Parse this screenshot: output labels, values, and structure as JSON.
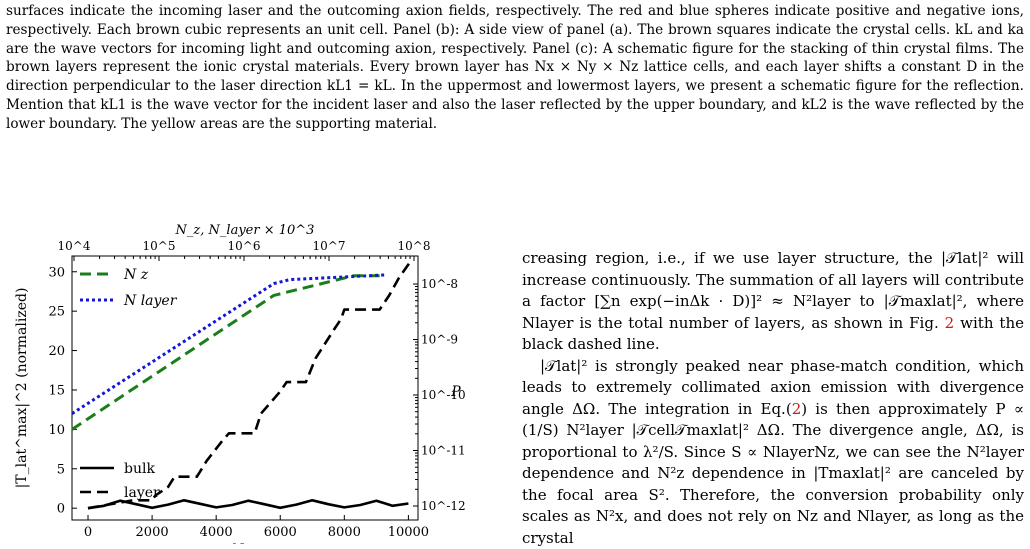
{
  "caption": {
    "paragraphs": [
      "surfaces indicate the incoming laser and the outcoming axion fields, respectively. The red and blue spheres indicate positive and negative ions, respectively. Each brown cubic represents an unit cell. Panel (b): A side view of panel (a). The brown squares indicate the crystal cells. kL and ka are the wave vectors for incoming light and outcoming axion, respectively. Panel (c): A schematic figure for the stacking of thin crystal films. The brown layers represent the ionic crystal materials. Every brown layer has Nx × Ny × Nz lattice cells, and each layer shifts a constant D in the direction perpendicular to the laser direction kL1 = kL. In the uppermost and lowermost layers, we present a schematic figure for the reflection. Mention that kL1 is the wave vector for the incident laser and also the laser reflected by the upper boundary, and kL2 is the wave reflected by the lower boundary. The yellow areas are the supporting material."
    ]
  },
  "body_text": {
    "p1_a": "creasing region, i.e., if we use layer structure, the |𝒯lat|² will increase continuously. The summation of all layers will contribute a factor [∑n exp(−inΔk · D)]² ≈ N²layer to |𝒯maxlat|², where Nlayer is the total number of layers, as shown in Fig. ",
    "p1_ref": "2",
    "p1_b": " with the black dashed line.",
    "p2_a": "|𝒯lat|² is strongly peaked near phase-match condition, which leads to extremely collimated axion emission with divergence angle ΔΩ. The integration in Eq.(",
    "p2_ref": "2",
    "p2_b": ") is then approximately P ∝ (1/S) N²layer |𝒯cell𝒯maxlat|² ΔΩ. The divergence angle, ΔΩ, is proportional to λ²/S. Since S ∝ NlayerNz, we can see the N²layer dependence and N²z dependence in |Tmaxlat|² are canceled by the focal area S². Therefore, the conversion probability only scales as N²x, and does not rely on Nz and Nlayer, as long as the crystal"
  },
  "chart_data": {
    "type": "line",
    "title": "",
    "xlabel": "N_y",
    "ylabel": "|T_lat^max|^2 (normalized)",
    "xlim": [
      -500,
      10300
    ],
    "ylim": [
      -1.5,
      32
    ],
    "xticks": [
      0,
      2000,
      4000,
      6000,
      8000,
      10000
    ],
    "yticks": [
      0,
      5,
      10,
      15,
      20,
      25,
      30
    ],
    "top_axis": {
      "label": "N_z,   N_layer × 10^3",
      "scale": "log",
      "ticks": [
        "10^4",
        "10^5",
        "10^6",
        "10^7",
        "10^8"
      ]
    },
    "right_axis": {
      "label": "P",
      "scale": "log",
      "ticks": [
        "10^-12",
        "10^-11",
        "10^-10",
        "10^-9",
        "10^-8"
      ]
    },
    "legend_upper": {
      "placement": "upper-left",
      "entries": [
        "N_z",
        "N_layer"
      ]
    },
    "legend_lower": {
      "placement": "center-left",
      "entries": [
        "bulk",
        "layer"
      ]
    },
    "series": [
      {
        "name": "N_z",
        "color": "#1a7f1a",
        "style": "dashed",
        "x": [
          -500,
          5800,
          8300,
          9100
        ],
        "y": [
          10,
          27,
          29.5,
          29.5
        ]
      },
      {
        "name": "N_layer",
        "color": "#1515d6",
        "style": "dotted",
        "x": [
          -500,
          5800,
          6300,
          9300
        ],
        "y": [
          12,
          28.5,
          29,
          29.6
        ]
      },
      {
        "name": "bulk",
        "color": "#000000",
        "style": "solid",
        "x": [
          0,
          500,
          1000,
          1500,
          2000,
          2500,
          3000,
          3500,
          4000,
          4500,
          5000,
          5500,
          6000,
          6500,
          7000,
          7500,
          8000,
          8500,
          9000,
          9500,
          10000
        ],
        "y": [
          0,
          0.3,
          0.95,
          0.5,
          0.05,
          0.45,
          1.0,
          0.55,
          0.1,
          0.4,
          0.95,
          0.5,
          0.05,
          0.45,
          1.0,
          0.5,
          0.1,
          0.4,
          0.95,
          0.3,
          0.6
        ]
      },
      {
        "name": "layer",
        "color": "#000000",
        "style": "dashed",
        "x": [
          0,
          1400,
          2000,
          2100,
          2500,
          2700,
          3400,
          3700,
          4200,
          4400,
          5200,
          5400,
          6000,
          6200,
          6800,
          7100,
          7700,
          7900,
          8000,
          8500,
          9100,
          9400,
          9700,
          10100
        ],
        "y": [
          0,
          1.0,
          1.0,
          1.6,
          2.7,
          4.0,
          4.0,
          6.0,
          8.6,
          9.5,
          9.5,
          12.0,
          14.8,
          16.0,
          16.0,
          19.0,
          22.8,
          24.0,
          25.2,
          25.2,
          25.2,
          27.0,
          29.2,
          31.5
        ]
      }
    ]
  }
}
